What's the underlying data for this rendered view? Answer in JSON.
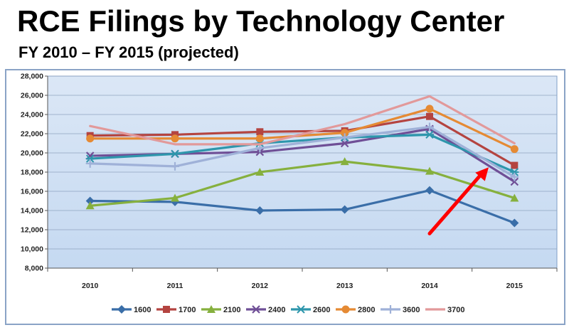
{
  "slide": {
    "title": "RCE Filings by Technology Center",
    "subtitle": "FY 2010 – FY 2015 (projected)"
  },
  "chart_data": {
    "type": "line",
    "categories": [
      "2010",
      "2011",
      "2012",
      "2013",
      "2014",
      "2015"
    ],
    "ylim": [
      8000,
      28000
    ],
    "yticks": [
      8000,
      10000,
      12000,
      14000,
      16000,
      18000,
      20000,
      22000,
      24000,
      26000,
      28000
    ],
    "ytick_labels": [
      "8,000",
      "10,000",
      "12,000",
      "14,000",
      "16,000",
      "18,000",
      "20,000",
      "22,000",
      "24,000",
      "26,000",
      "28,000"
    ],
    "grid": true,
    "legend_position": "bottom",
    "plot_background": "#c5d9f1",
    "annotation": {
      "type": "arrow",
      "color": "#ff0000",
      "points_to": "2015"
    },
    "series": [
      {
        "name": "1600",
        "color": "#3a6ea8",
        "marker": "diamond",
        "values": [
          15000,
          14900,
          14000,
          14100,
          16100,
          12700
        ]
      },
      {
        "name": "1700",
        "color": "#b44440",
        "marker": "square",
        "values": [
          21800,
          21900,
          22200,
          22300,
          23800,
          18700
        ]
      },
      {
        "name": "2100",
        "color": "#86b03e",
        "marker": "triangle",
        "values": [
          14500,
          15300,
          18000,
          19100,
          18100,
          15300
        ]
      },
      {
        "name": "2400",
        "color": "#6f4f96",
        "marker": "x",
        "values": [
          19700,
          19900,
          20100,
          21000,
          22500,
          17000
        ]
      },
      {
        "name": "2600",
        "color": "#2e96ac",
        "marker": "star",
        "values": [
          19400,
          19900,
          21000,
          21600,
          21900,
          18000
        ]
      },
      {
        "name": "2800",
        "color": "#e58a34",
        "marker": "circle",
        "values": [
          21500,
          21500,
          21500,
          22100,
          24600,
          20400
        ]
      },
      {
        "name": "3600",
        "color": "#9fb1d8",
        "marker": "plus",
        "values": [
          18900,
          18600,
          20500,
          21600,
          22700,
          17500
        ]
      },
      {
        "name": "3700",
        "color": "#e2999a",
        "marker": "none",
        "values": [
          22800,
          20900,
          20900,
          23000,
          25900,
          21000
        ]
      }
    ]
  }
}
